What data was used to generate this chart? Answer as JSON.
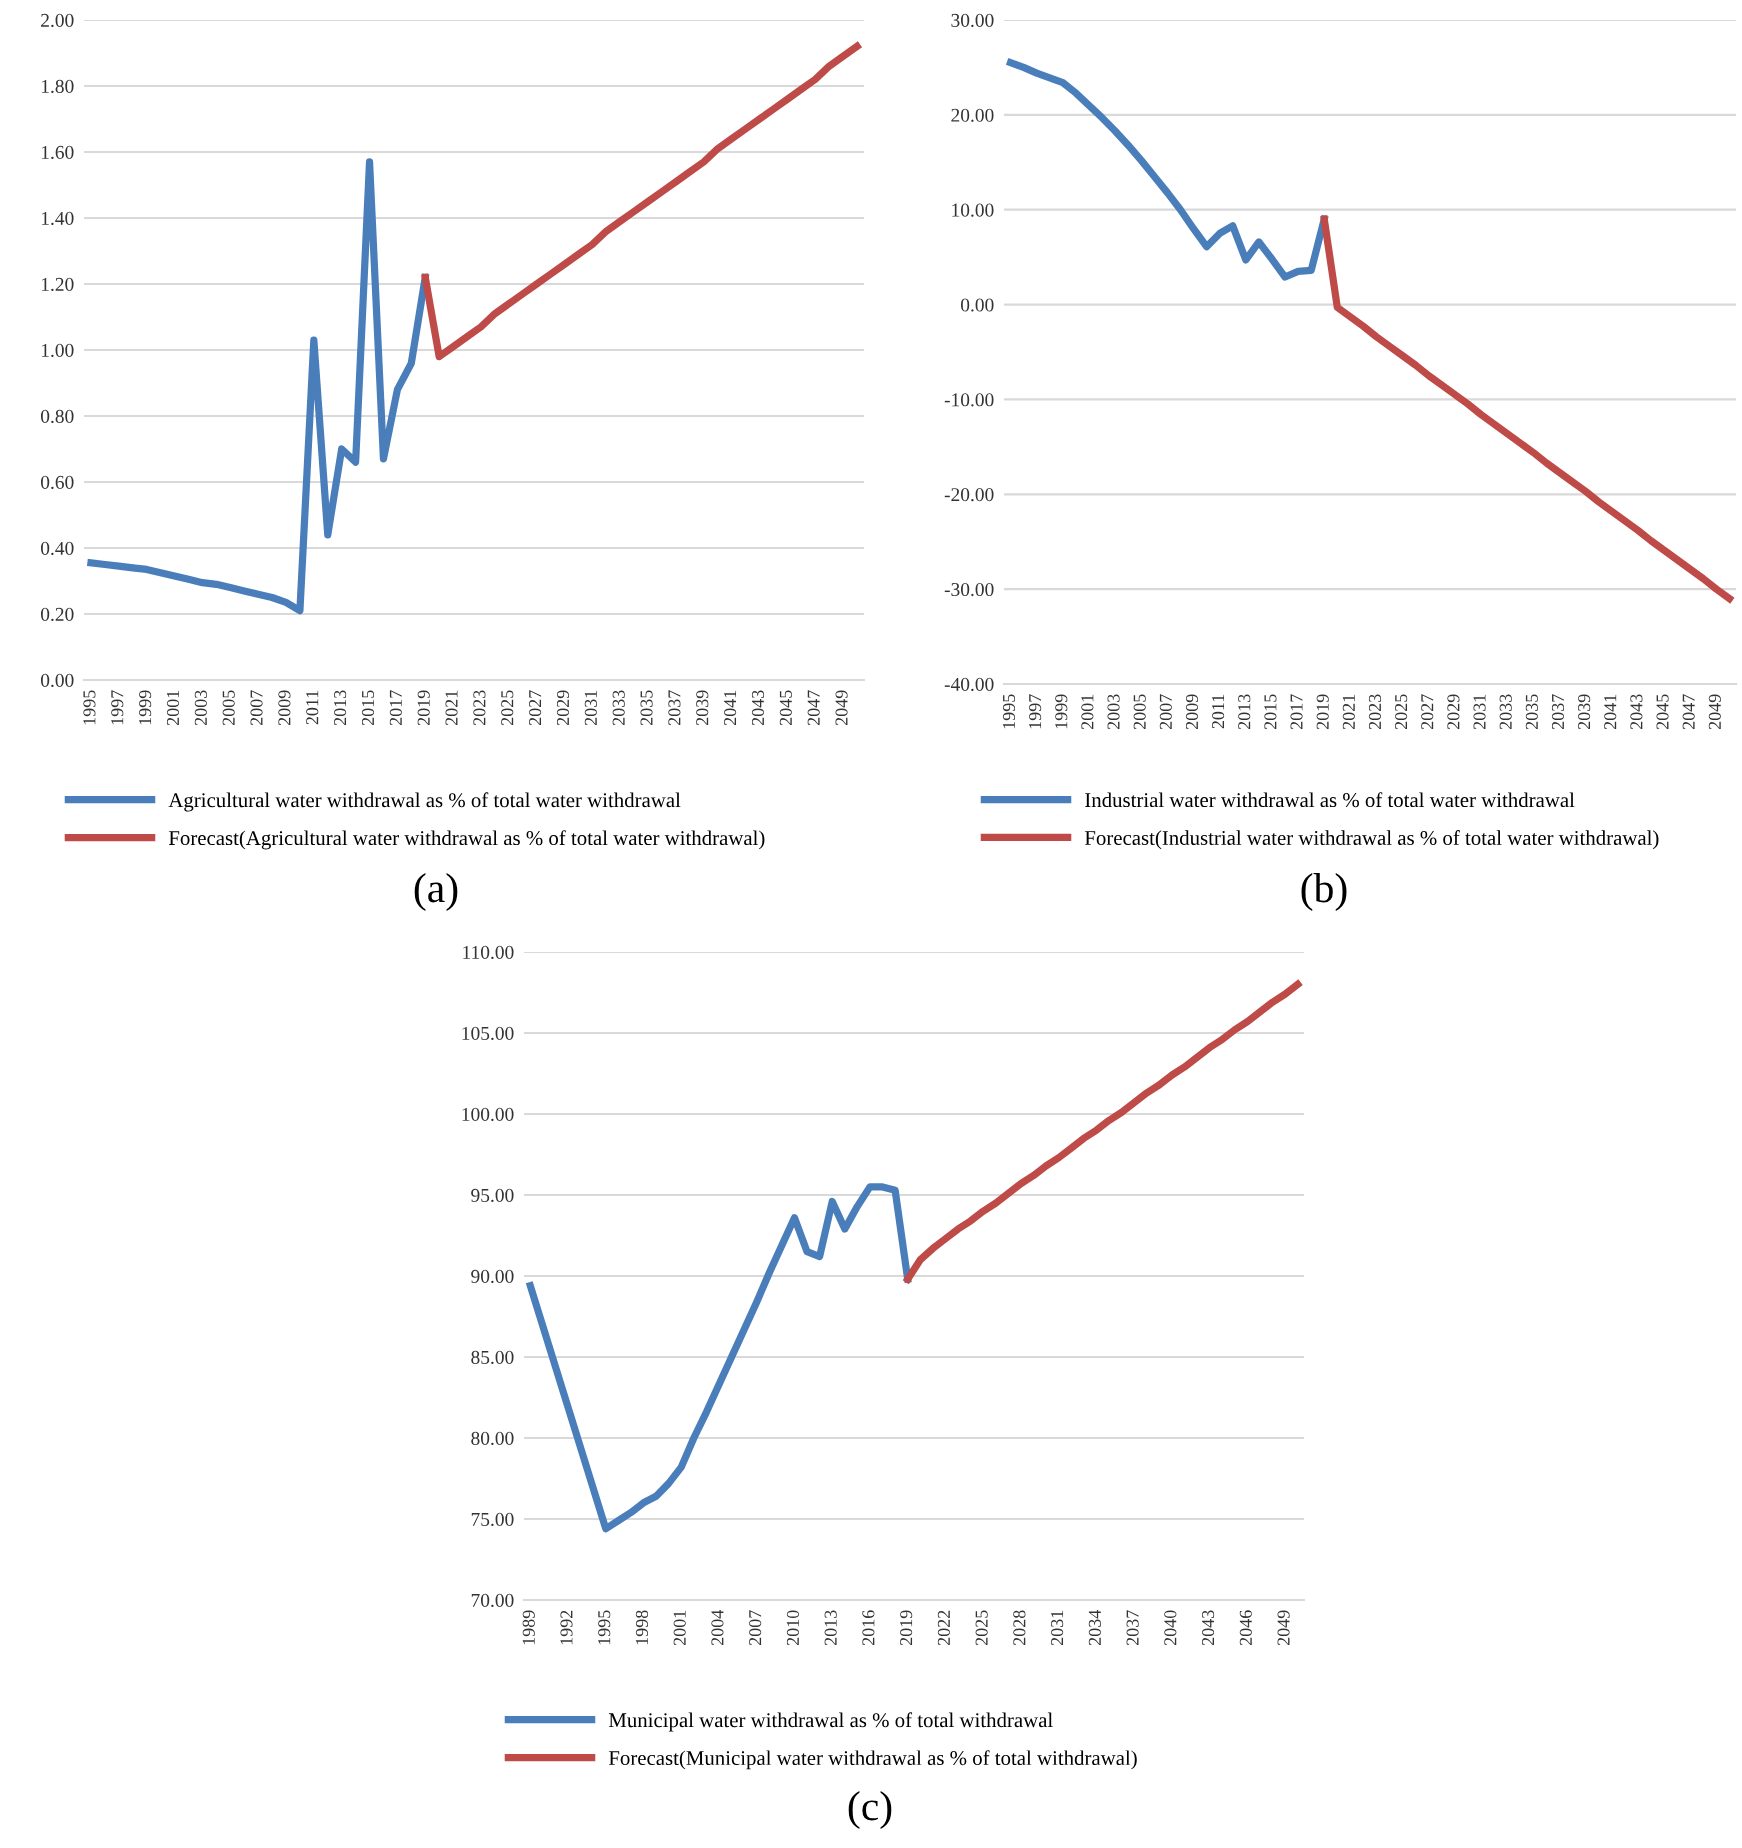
{
  "chart_data": [
    {
      "type": "line",
      "categories": [
        "1995",
        null,
        "1997",
        null,
        "1999",
        null,
        "2001",
        null,
        "2003",
        null,
        "2005",
        null,
        "2007",
        null,
        "2009",
        null,
        "2011",
        null,
        "2013",
        null,
        "2015",
        null,
        "2017",
        null,
        "2019",
        null,
        "2021",
        null,
        "2023",
        null,
        "2025",
        null,
        "2027",
        null,
        "2029",
        null,
        "2031",
        null,
        "2033",
        null,
        "2035",
        null,
        "2037",
        null,
        "2039",
        null,
        "2041",
        null,
        "2043",
        null,
        "2045",
        null,
        "2047",
        null,
        "2049",
        null
      ],
      "series": [
        {
          "name": "Agricultural water withdrawal as % of total water withdrawal",
          "color": "#4a7ebb",
          "values": [
            0.355,
            0.35,
            0.345,
            0.34,
            0.335,
            0.325,
            0.315,
            0.305,
            0.295,
            0.29,
            0.28,
            0.27,
            0.26,
            0.25,
            0.235,
            0.21,
            1.03,
            0.44,
            0.7,
            0.66,
            1.57,
            0.67,
            0.88,
            0.96,
            1.22,
            null,
            null,
            null,
            null,
            null,
            null,
            null,
            null,
            null,
            null,
            null,
            null,
            null,
            null,
            null,
            null,
            null,
            null,
            null,
            null,
            null,
            null,
            null,
            null,
            null,
            null,
            null,
            null,
            null,
            null,
            null
          ]
        },
        {
          "name": "Forecast(Agricultural water withdrawal as % of total water withdrawal)",
          "color": "#be4b48",
          "values": [
            null,
            null,
            null,
            null,
            null,
            null,
            null,
            null,
            null,
            null,
            null,
            null,
            null,
            null,
            null,
            null,
            null,
            null,
            null,
            null,
            null,
            null,
            null,
            null,
            1.22,
            0.98,
            1.01,
            1.04,
            1.07,
            1.11,
            1.14,
            1.17,
            1.2,
            1.23,
            1.26,
            1.29,
            1.32,
            1.36,
            1.39,
            1.42,
            1.45,
            1.48,
            1.51,
            1.54,
            1.57,
            1.61,
            1.64,
            1.67,
            1.7,
            1.73,
            1.76,
            1.79,
            1.82,
            1.86,
            1.89,
            1.92
          ]
        }
      ],
      "ylim": [
        0,
        2
      ],
      "yticks": [
        {
          "value": 0,
          "label": "0.00"
        },
        {
          "value": 0.2,
          "label": "0.20"
        },
        {
          "value": 0.4,
          "label": "0.40"
        },
        {
          "value": 0.6,
          "label": "0.60"
        },
        {
          "value": 0.8,
          "label": "0.80"
        },
        {
          "value": 1,
          "label": "1.00"
        },
        {
          "value": 1.2,
          "label": "1.20"
        },
        {
          "value": 1.4,
          "label": "1.40"
        },
        {
          "value": 1.6,
          "label": "1.60"
        },
        {
          "value": 1.8,
          "label": "1.80"
        },
        {
          "value": 2,
          "label": "2.00"
        }
      ],
      "grid": "y",
      "legend": "bottom",
      "line_style": "solid",
      "marker": "none",
      "annotations": [
        "(a)"
      ]
    },
    {
      "type": "line",
      "categories": [
        "1995",
        null,
        "1997",
        null,
        "1999",
        null,
        "2001",
        null,
        "2003",
        null,
        "2005",
        null,
        "2007",
        null,
        "2009",
        null,
        "2011",
        null,
        "2013",
        null,
        "2015",
        null,
        "2017",
        null,
        "2019",
        null,
        "2021",
        null,
        "2023",
        null,
        "2025",
        null,
        "2027",
        null,
        "2029",
        null,
        "2031",
        null,
        "2033",
        null,
        "2035",
        null,
        "2037",
        null,
        "2039",
        null,
        "2041",
        null,
        "2043",
        null,
        "2045",
        null,
        "2047",
        null,
        "2049",
        null
      ],
      "series": [
        {
          "name": "Industrial water withdrawal as % of total water withdrawal",
          "color": "#4a7ebb",
          "values": [
            25.5,
            25.0,
            24.4,
            23.9,
            23.4,
            22.3,
            21.0,
            19.7,
            18.3,
            16.8,
            15.2,
            13.5,
            11.8,
            10.0,
            8.0,
            6.1,
            7.5,
            8.3,
            4.7,
            6.6,
            4.8,
            2.9,
            3.5,
            3.6,
            9.0,
            null,
            null,
            null,
            null,
            null,
            null,
            null,
            null,
            null,
            null,
            null,
            null,
            null,
            null,
            null,
            null,
            null,
            null,
            null,
            null,
            null,
            null,
            null,
            null,
            null,
            null,
            null,
            null,
            null,
            null,
            null
          ]
        },
        {
          "name": "Forecast(Industrial water withdrawal as % of total water withdrawal)",
          "color": "#be4b48",
          "values": [
            null,
            null,
            null,
            null,
            null,
            null,
            null,
            null,
            null,
            null,
            null,
            null,
            null,
            null,
            null,
            null,
            null,
            null,
            null,
            null,
            null,
            null,
            null,
            null,
            9.0,
            -0.3,
            -1.3,
            -2.3,
            -3.4,
            -4.4,
            -5.4,
            -6.4,
            -7.5,
            -8.5,
            -9.5,
            -10.5,
            -11.6,
            -12.6,
            -13.6,
            -14.6,
            -15.6,
            -16.7,
            -17.7,
            -18.7,
            -19.7,
            -20.8,
            -21.8,
            -22.8,
            -23.8,
            -24.9,
            -25.9,
            -26.9,
            -27.9,
            -28.9,
            -30.0,
            -31.0
          ]
        }
      ],
      "ylim": [
        -40,
        30
      ],
      "yticks": [
        {
          "value": -40,
          "label": "-40.00"
        },
        {
          "value": -30,
          "label": "-30.00"
        },
        {
          "value": -20,
          "label": "-20.00"
        },
        {
          "value": -10,
          "label": "-10.00"
        },
        {
          "value": 0,
          "label": "0.00"
        },
        {
          "value": 10,
          "label": "10.00"
        },
        {
          "value": 20,
          "label": "20.00"
        },
        {
          "value": 30,
          "label": "30.00"
        }
      ],
      "grid": "y",
      "legend": "bottom",
      "line_style": "solid",
      "marker": "none",
      "annotations": [
        "(b)"
      ]
    },
    {
      "type": "line",
      "categories": [
        "1989",
        null,
        null,
        "1992",
        null,
        null,
        "1995",
        null,
        null,
        "1998",
        null,
        null,
        "2001",
        null,
        null,
        "2004",
        null,
        null,
        "2007",
        null,
        null,
        "2010",
        null,
        null,
        "2013",
        null,
        null,
        "2016",
        null,
        null,
        "2019",
        null,
        null,
        "2022",
        null,
        null,
        "2025",
        null,
        null,
        "2028",
        null,
        null,
        "2031",
        null,
        null,
        "2034",
        null,
        null,
        "2037",
        null,
        null,
        "2040",
        null,
        null,
        "2043",
        null,
        null,
        "2046",
        null,
        null,
        "2049",
        null
      ],
      "series": [
        {
          "name": "Municipal water withdrawal as % of total withdrawal",
          "color": "#4a7ebb",
          "values": [
            89.4,
            86.9,
            84.4,
            81.9,
            79.4,
            76.9,
            74.4,
            74.9,
            75.4,
            76.0,
            76.4,
            77.2,
            78.2,
            80.0,
            81.6,
            83.3,
            85.0,
            86.7,
            88.4,
            90.2,
            91.9,
            93.6,
            91.5,
            91.2,
            94.6,
            92.9,
            94.3,
            95.5,
            95.5,
            95.3,
            89.8,
            null,
            null,
            null,
            null,
            null,
            null,
            null,
            null,
            null,
            null,
            null,
            null,
            null,
            null,
            null,
            null,
            null,
            null,
            null,
            null,
            null,
            null,
            null,
            null,
            null,
            null,
            null,
            null,
            null,
            null,
            null
          ]
        },
        {
          "name": "Forecast(Municipal water withdrawal as % of total withdrawal)",
          "color": "#be4b48",
          "values": [
            null,
            null,
            null,
            null,
            null,
            null,
            null,
            null,
            null,
            null,
            null,
            null,
            null,
            null,
            null,
            null,
            null,
            null,
            null,
            null,
            null,
            null,
            null,
            null,
            null,
            null,
            null,
            null,
            null,
            null,
            89.8,
            91.0,
            91.7,
            92.3,
            92.9,
            93.4,
            94.0,
            94.5,
            95.1,
            95.7,
            96.2,
            96.8,
            97.3,
            97.9,
            98.5,
            99.0,
            99.6,
            100.1,
            100.7,
            101.3,
            101.8,
            102.4,
            102.9,
            103.5,
            104.1,
            104.6,
            105.2,
            105.7,
            106.3,
            106.9,
            107.4,
            108.0
          ]
        }
      ],
      "ylim": [
        70,
        110
      ],
      "yticks": [
        {
          "value": 70,
          "label": "70.00"
        },
        {
          "value": 75,
          "label": "75.00"
        },
        {
          "value": 80,
          "label": "80.00"
        },
        {
          "value": 85,
          "label": "85.00"
        },
        {
          "value": 90,
          "label": "90.00"
        },
        {
          "value": 95,
          "label": "95.00"
        },
        {
          "value": 100,
          "label": "100.00"
        },
        {
          "value": 105,
          "label": "105.00"
        },
        {
          "value": 110,
          "label": "110.00"
        }
      ],
      "grid": "y",
      "legend": "bottom",
      "line_style": "solid",
      "marker": "none",
      "annotations": [
        "(c)"
      ]
    }
  ]
}
